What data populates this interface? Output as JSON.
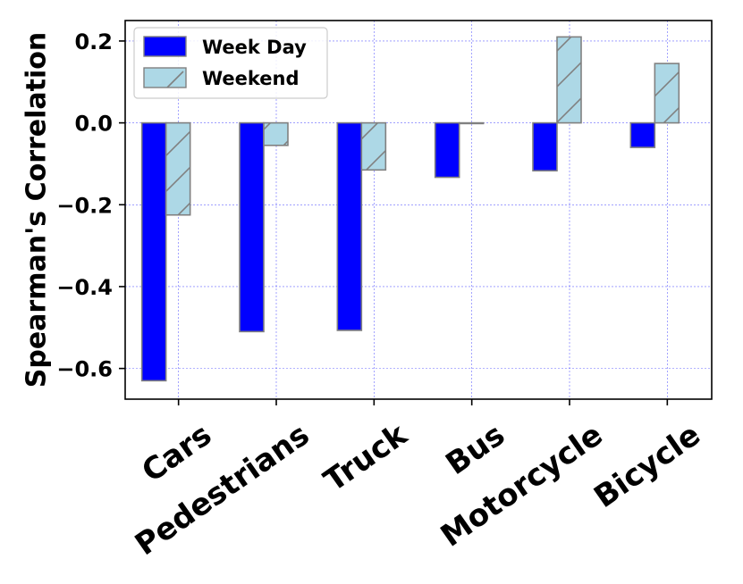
{
  "chart_data": {
    "type": "bar",
    "title": "",
    "xlabel": "",
    "ylabel": "Spearman's Correlation",
    "categories": [
      "Cars",
      "Pedestrians",
      "Truck",
      "Bus",
      "Motorcycle",
      "Bicycle"
    ],
    "series": [
      {
        "name": "Week Day",
        "values": [
          -0.63,
          -0.51,
          -0.507,
          -0.133,
          -0.117,
          -0.06
        ],
        "color": "#0000ff",
        "hatch": "none"
      },
      {
        "name": "Weekend",
        "values": [
          -0.225,
          -0.055,
          -0.115,
          0.0,
          0.21,
          0.145
        ],
        "color": "#add8e6",
        "hatch": "/"
      }
    ],
    "ylim": [
      -0.675,
      0.25
    ],
    "yticks": [
      0.2,
      0.0,
      -0.2,
      -0.4,
      -0.6
    ],
    "ytick_labels": [
      "0.2",
      "0.0",
      "−0.2",
      "−0.4",
      "−0.6"
    ],
    "grid": true,
    "grid_color": "#0000ff",
    "bar_edge_color": "#808080",
    "legend_position": "top-left"
  }
}
